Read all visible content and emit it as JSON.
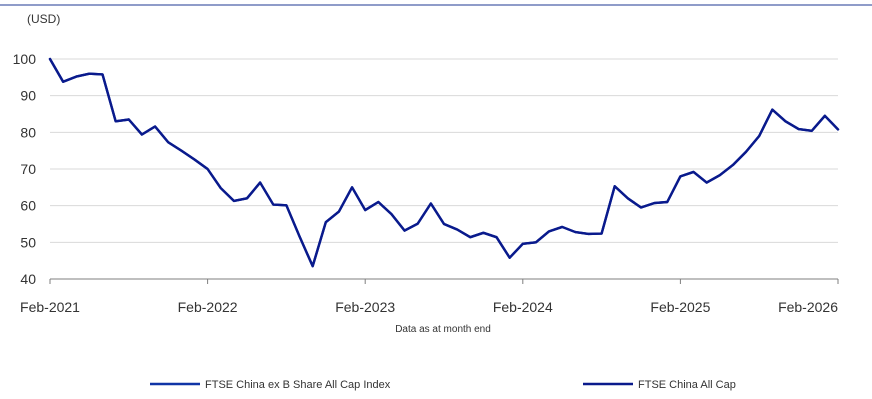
{
  "chart_data": {
    "type": "line",
    "unit_label": "(USD)",
    "caption": "Data as at month end",
    "ylim": [
      40,
      100
    ],
    "yticks": [
      40,
      50,
      60,
      70,
      80,
      90,
      100
    ],
    "xticks": [
      "Feb-2021",
      "Feb-2022",
      "Feb-2023",
      "Feb-2024",
      "Feb-2025",
      "Feb-2026"
    ],
    "grid": "horizontal",
    "legend_position": "bottom",
    "colors": {
      "index_line": "#1034a6",
      "all_cap_line": "#0a1a8c",
      "grid": "#d9d9d9",
      "axis": "#7f7f7f",
      "top_rule": "#1f3a93"
    },
    "x": [
      "Feb-2021",
      "Mar-2021",
      "Apr-2021",
      "May-2021",
      "Jun-2021",
      "Jul-2021",
      "Aug-2021",
      "Sep-2021",
      "Oct-2021",
      "Nov-2021",
      "Dec-2021",
      "Jan-2022",
      "Feb-2022",
      "Mar-2022",
      "Apr-2022",
      "May-2022",
      "Jun-2022",
      "Jul-2022",
      "Aug-2022",
      "Sep-2022",
      "Oct-2022",
      "Nov-2022",
      "Dec-2022",
      "Jan-2023",
      "Feb-2023",
      "Mar-2023",
      "Apr-2023",
      "May-2023",
      "Jun-2023",
      "Jul-2023",
      "Aug-2023",
      "Sep-2023",
      "Oct-2023",
      "Nov-2023",
      "Dec-2023",
      "Jan-2024",
      "Feb-2024",
      "Mar-2024",
      "Apr-2024",
      "May-2024",
      "Jun-2024",
      "Jul-2024",
      "Aug-2024",
      "Sep-2024",
      "Oct-2024",
      "Nov-2024",
      "Dec-2024",
      "Jan-2025",
      "Feb-2025",
      "Mar-2025",
      "Apr-2025",
      "May-2025",
      "Jun-2025",
      "Jul-2025",
      "Aug-2025",
      "Sep-2025",
      "Oct-2025",
      "Nov-2025",
      "Dec-2025",
      "Jan-2026",
      "Feb-2026"
    ],
    "series": [
      {
        "name": "FTSE China ex B Share All Cap Index",
        "values": [
          100,
          93.8,
          95.2,
          96,
          95.8,
          83,
          83.5,
          79.4,
          81.6,
          77.3,
          75,
          72.6,
          70,
          64.8,
          61.3,
          62,
          66.3,
          60.3,
          60.1,
          51.6,
          43.5,
          55.5,
          58.4,
          65,
          58.8,
          61,
          57.7,
          53.2,
          55.1,
          60.6,
          55,
          53.5,
          51.4,
          52.6,
          51.4,
          45.8,
          49.6,
          50,
          53,
          54.2,
          52.8,
          52.3,
          52.4,
          65.3,
          62,
          59.5,
          60.7,
          61,
          68,
          69.2,
          66.3,
          68.3,
          71.1,
          74.7,
          79,
          86.2,
          83,
          80.9,
          80.4,
          84.5,
          80.8
        ]
      },
      {
        "name": "FTSE China All Cap",
        "values": [
          100,
          93.8,
          95.2,
          96,
          95.8,
          83,
          83.5,
          79.4,
          81.6,
          77.3,
          75,
          72.6,
          70,
          64.8,
          61.3,
          62,
          66.3,
          60.3,
          60.1,
          51.6,
          43.5,
          55.5,
          58.4,
          65,
          58.8,
          61,
          57.7,
          53.2,
          55.1,
          60.6,
          55,
          53.5,
          51.4,
          52.6,
          51.4,
          45.8,
          49.6,
          50,
          53,
          54.2,
          52.8,
          52.3,
          52.4,
          65.3,
          62,
          59.5,
          60.7,
          61,
          68,
          69.2,
          66.3,
          68.3,
          71.1,
          74.7,
          79,
          86.2,
          83,
          80.9,
          80.4,
          84.5,
          80.8
        ]
      }
    ]
  }
}
